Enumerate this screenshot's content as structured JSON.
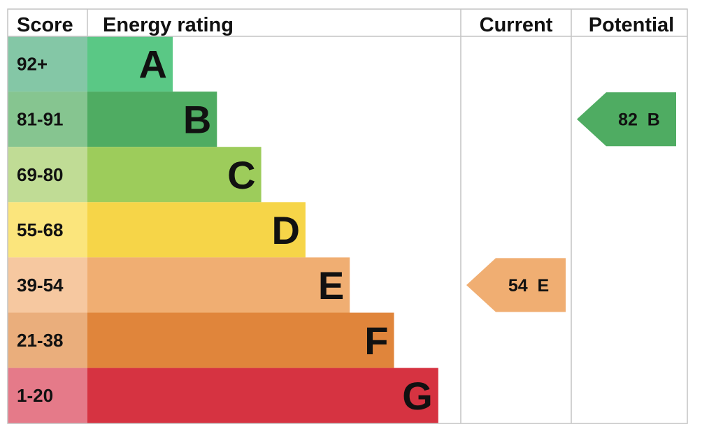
{
  "chart_data": {
    "type": "bar",
    "headers": {
      "score": "Score",
      "rating": "Energy rating",
      "current": "Current",
      "potential": "Potential"
    },
    "bands": [
      {
        "range": "92+",
        "letter": "A",
        "color": "#5ac885",
        "score_bg": "#84c7a6"
      },
      {
        "range": "81-91",
        "letter": "B",
        "color": "#4fac62",
        "score_bg": "#86c590"
      },
      {
        "range": "69-80",
        "letter": "C",
        "color": "#9dcc5b",
        "score_bg": "#c0dc95"
      },
      {
        "range": "55-68",
        "letter": "D",
        "color": "#f6d548",
        "score_bg": "#fbe57c"
      },
      {
        "range": "39-54",
        "letter": "E",
        "color": "#f0ae72",
        "score_bg": "#f6c8a0"
      },
      {
        "range": "21-38",
        "letter": "F",
        "color": "#e0853b",
        "score_bg": "#eaae7c"
      },
      {
        "range": "1-20",
        "letter": "G",
        "color": "#d63341",
        "score_bg": "#e57a89"
      }
    ],
    "current": {
      "value": 54,
      "letter": "E",
      "text": "54  E"
    },
    "potential": {
      "value": 82,
      "letter": "B",
      "text": "82  B"
    }
  }
}
